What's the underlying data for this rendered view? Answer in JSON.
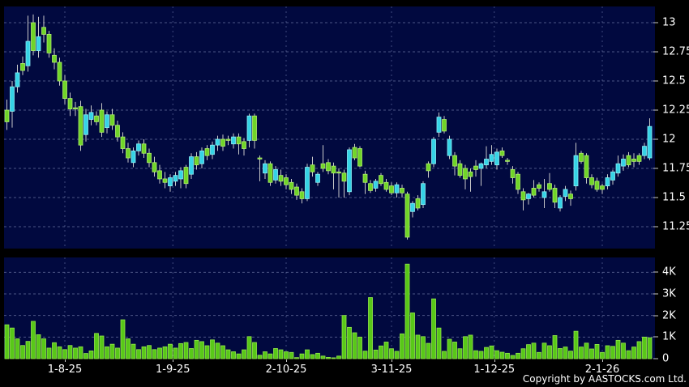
{
  "copyright": "Copyright by AASTOCKS.com Ltd.",
  "colors": {
    "background": "#000000",
    "panel_background": "#01093f",
    "up_candle_fill": "#35d3e6",
    "up_candle_edge": "#8ceef5",
    "down_candle_fill": "#70d528",
    "down_candle_edge": "#b0ee6e",
    "volume_bar_fill": "#58c818",
    "volume_bar_edge": "#95e84c",
    "wick": "#c8c8c8",
    "gridline": "#8a93bd",
    "month_gridline": "#6a74a8",
    "label_text": "#ffffff"
  },
  "chart_data": {
    "type": "candlestick_with_volume",
    "title": "",
    "legend": "none",
    "grid": "dashed",
    "price_axis": {
      "side": "right",
      "tick_labels": [
        "13",
        "12.75",
        "12.5",
        "12.25",
        "12",
        "11.75",
        "11.5",
        "11.25"
      ],
      "tick_values": [
        13,
        12.75,
        12.5,
        12.25,
        12,
        11.75,
        11.5,
        11.25
      ],
      "range_shown": [
        11.06,
        13.14
      ]
    },
    "volume_axis": {
      "side": "right",
      "tick_labels": [
        "4K",
        "3K",
        "2K",
        "1K",
        "0"
      ],
      "tick_values": [
        4,
        3,
        2,
        1,
        0
      ],
      "range_shown": [
        0,
        4.7
      ]
    },
    "x_axis": {
      "labels": [
        "1-8-25",
        "1-9-25",
        "2-10-25",
        "3-11-25",
        "1-12-25",
        "2-1-26"
      ],
      "month_tick_indices": [
        11,
        31.5,
        53,
        73,
        92.5,
        113
      ]
    },
    "candle_columns": [
      "open",
      "high",
      "low",
      "close",
      "volume_k"
    ],
    "candles": [
      [
        12.25,
        12.34,
        12.08,
        12.15,
        1.57
      ],
      [
        12.24,
        12.5,
        12.1,
        12.45,
        1.42
      ],
      [
        12.45,
        12.64,
        12.4,
        12.57,
        0.92
      ],
      [
        12.65,
        12.71,
        12.55,
        12.59,
        0.61
      ],
      [
        12.63,
        13.06,
        12.58,
        12.84,
        0.8
      ],
      [
        13.0,
        13.07,
        12.72,
        12.76,
        1.73
      ],
      [
        12.76,
        13.05,
        12.7,
        12.88,
        1.11
      ],
      [
        12.96,
        13.06,
        12.83,
        12.9,
        0.92
      ],
      [
        12.9,
        12.93,
        12.7,
        12.74,
        0.49
      ],
      [
        12.72,
        12.78,
        12.6,
        12.66,
        0.74
      ],
      [
        12.66,
        12.7,
        12.46,
        12.5,
        0.55
      ],
      [
        12.5,
        12.55,
        12.3,
        12.35,
        0.42
      ],
      [
        12.35,
        12.4,
        12.2,
        12.26,
        0.61
      ],
      [
        12.27,
        12.32,
        12.2,
        12.26,
        0.49
      ],
      [
        12.28,
        12.33,
        11.9,
        11.95,
        0.55
      ],
      [
        12.04,
        12.26,
        11.98,
        12.21,
        0.24
      ],
      [
        12.17,
        12.29,
        12.12,
        12.23,
        0.36
      ],
      [
        12.2,
        12.24,
        12.12,
        12.15,
        1.17
      ],
      [
        12.25,
        12.31,
        12.02,
        12.06,
        1.05
      ],
      [
        12.1,
        12.24,
        12.05,
        12.21,
        0.55
      ],
      [
        12.21,
        12.26,
        12.08,
        12.12,
        0.67
      ],
      [
        12.12,
        12.16,
        11.98,
        12.02,
        0.49
      ],
      [
        12.02,
        12.06,
        11.88,
        11.92,
        1.8
      ],
      [
        11.92,
        11.97,
        11.8,
        11.84,
        0.92
      ],
      [
        11.8,
        11.93,
        11.76,
        11.9,
        0.67
      ],
      [
        11.9,
        11.99,
        11.86,
        11.96,
        0.42
      ],
      [
        11.96,
        12.0,
        11.84,
        11.88,
        0.55
      ],
      [
        11.88,
        11.92,
        11.76,
        11.8,
        0.61
      ],
      [
        11.8,
        11.85,
        11.68,
        11.72,
        0.42
      ],
      [
        11.73,
        11.78,
        11.62,
        11.66,
        0.49
      ],
      [
        11.66,
        11.72,
        11.58,
        11.63,
        0.55
      ],
      [
        11.6,
        11.7,
        11.55,
        11.67,
        0.67
      ],
      [
        11.64,
        11.72,
        11.6,
        11.69,
        0.49
      ],
      [
        11.66,
        11.76,
        11.58,
        11.73,
        0.7
      ],
      [
        11.76,
        11.78,
        11.58,
        11.62,
        0.75
      ],
      [
        11.7,
        11.88,
        11.66,
        11.85,
        0.47
      ],
      [
        11.85,
        11.89,
        11.74,
        11.78,
        0.85
      ],
      [
        11.79,
        11.93,
        11.75,
        11.9,
        0.79
      ],
      [
        11.92,
        11.95,
        11.82,
        11.86,
        0.6
      ],
      [
        11.87,
        11.98,
        11.83,
        11.95,
        0.87
      ],
      [
        11.95,
        12.03,
        11.9,
        12.0,
        0.72
      ],
      [
        12.0,
        12.04,
        11.9,
        11.94,
        0.6
      ],
      [
        12.0,
        12.03,
        11.95,
        11.99,
        0.41
      ],
      [
        11.96,
        12.05,
        11.92,
        12.02,
        0.32
      ],
      [
        12.02,
        12.05,
        11.87,
        11.96,
        0.22
      ],
      [
        11.98,
        12.01,
        11.86,
        11.92,
        0.41
      ],
      [
        11.99,
        12.22,
        11.93,
        12.2,
        1.02
      ],
      [
        12.2,
        12.22,
        11.92,
        11.99,
        0.75
      ],
      [
        11.84,
        11.86,
        11.64,
        11.83,
        0.16
      ],
      [
        11.71,
        11.82,
        11.66,
        11.79,
        0.32
      ],
      [
        11.79,
        11.81,
        11.6,
        11.63,
        0.22
      ],
      [
        11.65,
        11.77,
        11.62,
        11.74,
        0.47
      ],
      [
        11.69,
        11.74,
        11.6,
        11.64,
        0.41
      ],
      [
        11.67,
        11.7,
        11.57,
        11.61,
        0.32
      ],
      [
        11.63,
        11.66,
        11.53,
        11.57,
        0.29
      ],
      [
        11.59,
        11.62,
        11.48,
        11.52,
        0.05
      ],
      [
        11.55,
        11.58,
        11.45,
        11.49,
        0.22
      ],
      [
        11.49,
        11.79,
        11.47,
        11.76,
        0.41
      ],
      [
        11.78,
        11.85,
        11.68,
        11.72,
        0.19
      ],
      [
        11.63,
        11.72,
        11.6,
        11.7,
        0.25
      ],
      [
        11.79,
        11.95,
        11.72,
        11.75,
        0.12
      ],
      [
        11.8,
        11.83,
        11.7,
        11.73,
        0.06
      ],
      [
        11.77,
        11.8,
        11.57,
        11.71,
        0.04
      ],
      [
        11.72,
        11.75,
        11.5,
        11.71,
        0.12
      ],
      [
        11.71,
        11.74,
        11.5,
        11.64,
        2.0
      ],
      [
        11.55,
        11.93,
        11.52,
        11.91,
        1.45
      ],
      [
        11.93,
        11.96,
        11.82,
        11.84,
        1.2
      ],
      [
        11.92,
        11.94,
        11.76,
        11.77,
        1.0
      ],
      [
        11.7,
        11.73,
        11.53,
        11.63,
        0.35
      ],
      [
        11.62,
        11.65,
        11.54,
        11.56,
        2.83
      ],
      [
        11.58,
        11.66,
        11.55,
        11.64,
        0.4
      ],
      [
        11.69,
        11.71,
        11.6,
        11.62,
        0.59
      ],
      [
        11.63,
        11.66,
        11.55,
        11.57,
        0.77
      ],
      [
        11.6,
        11.63,
        11.52,
        11.54,
        0.46
      ],
      [
        11.54,
        11.63,
        11.5,
        11.61,
        0.34
      ],
      [
        11.58,
        11.61,
        11.5,
        11.54,
        1.15
      ],
      [
        11.53,
        11.55,
        11.14,
        11.16,
        4.38
      ],
      [
        11.38,
        11.47,
        11.33,
        11.45,
        2.12
      ],
      [
        11.49,
        11.52,
        11.39,
        11.41,
        1.09
      ],
      [
        11.44,
        11.64,
        11.41,
        11.62,
        1.02
      ],
      [
        11.79,
        11.81,
        11.67,
        11.73,
        0.71
      ],
      [
        11.79,
        12.02,
        11.76,
        12.0,
        2.77
      ],
      [
        12.06,
        12.23,
        12.02,
        12.19,
        1.42
      ],
      [
        12.17,
        12.2,
        12.05,
        12.07,
        0.34
      ],
      [
        11.86,
        12.03,
        11.83,
        12.0,
        0.9
      ],
      [
        11.86,
        11.89,
        11.69,
        11.77,
        0.77
      ],
      [
        11.79,
        11.82,
        11.67,
        11.69,
        0.46
      ],
      [
        11.75,
        11.78,
        11.57,
        11.66,
        1.02
      ],
      [
        11.72,
        11.75,
        11.55,
        11.68,
        1.09
      ],
      [
        11.77,
        11.82,
        11.68,
        11.74,
        0.37
      ],
      [
        11.75,
        11.8,
        11.6,
        11.79,
        0.34
      ],
      [
        11.78,
        11.94,
        11.75,
        11.83,
        0.52
      ],
      [
        11.81,
        11.95,
        11.78,
        11.87,
        0.59
      ],
      [
        11.78,
        11.92,
        11.74,
        11.89,
        0.37
      ],
      [
        11.9,
        11.93,
        11.84,
        11.86,
        0.3
      ],
      [
        11.82,
        11.84,
        11.78,
        11.81,
        0.25
      ],
      [
        11.74,
        11.77,
        11.62,
        11.67,
        0.15
      ],
      [
        11.7,
        11.72,
        11.53,
        11.57,
        0.25
      ],
      [
        11.55,
        11.58,
        11.39,
        11.48,
        0.46
      ],
      [
        11.49,
        11.54,
        11.44,
        11.53,
        0.65
      ],
      [
        11.58,
        11.65,
        11.5,
        11.52,
        0.72
      ],
      [
        11.61,
        11.63,
        11.55,
        11.58,
        0.29
      ],
      [
        11.5,
        11.66,
        11.41,
        11.55,
        0.72
      ],
      [
        11.62,
        11.71,
        11.55,
        11.57,
        0.6
      ],
      [
        11.58,
        11.61,
        11.41,
        11.46,
        1.07
      ],
      [
        11.41,
        11.52,
        11.38,
        11.5,
        0.47
      ],
      [
        11.51,
        11.6,
        11.47,
        11.57,
        0.54
      ],
      [
        11.53,
        11.56,
        11.43,
        11.49,
        0.35
      ],
      [
        11.6,
        11.97,
        11.56,
        11.86,
        1.27
      ],
      [
        11.88,
        11.9,
        11.79,
        11.81,
        0.54
      ],
      [
        11.86,
        11.88,
        11.62,
        11.67,
        0.72
      ],
      [
        11.67,
        11.7,
        11.58,
        11.61,
        0.45
      ],
      [
        11.64,
        11.67,
        11.55,
        11.57,
        0.66
      ],
      [
        11.6,
        11.62,
        11.53,
        11.57,
        0.29
      ],
      [
        11.6,
        11.7,
        11.57,
        11.67,
        0.6
      ],
      [
        11.65,
        11.74,
        11.61,
        11.72,
        0.57
      ],
      [
        11.71,
        11.86,
        11.68,
        11.79,
        0.85
      ],
      [
        11.77,
        11.87,
        11.73,
        11.83,
        0.72
      ],
      [
        11.86,
        11.89,
        11.76,
        11.78,
        0.37
      ],
      [
        11.83,
        11.88,
        11.76,
        11.81,
        0.54
      ],
      [
        11.86,
        11.88,
        11.78,
        11.81,
        0.79
      ],
      [
        11.86,
        11.97,
        11.83,
        11.94,
        1.0
      ],
      [
        11.84,
        12.18,
        11.82,
        12.11,
        0.97
      ]
    ]
  }
}
